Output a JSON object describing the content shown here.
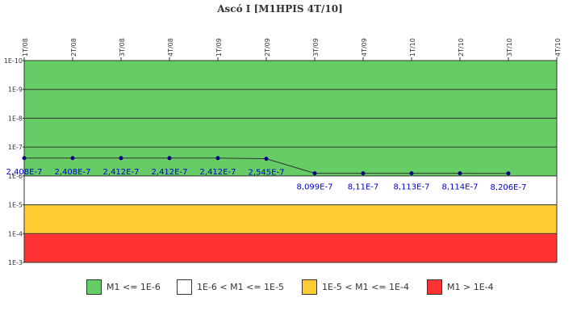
{
  "chart_data": {
    "type": "line",
    "title": "Ascó I [M1HPIS 4T/10]",
    "y_scale": "log",
    "y_axis_inverted": true,
    "y_ticks": [
      "1E-10",
      "1E-9",
      "1E-8",
      "1E-7",
      "1E-6",
      "1E-5",
      "1E-4",
      "1E-3"
    ],
    "y_tick_values": [
      1e-10,
      1e-09,
      1e-08,
      1e-07,
      1e-06,
      1e-05,
      0.0001,
      0.001
    ],
    "x_ticks": [
      "1T/08",
      "2T/08",
      "3T/08",
      "4T/08",
      "1T/09",
      "2T/09",
      "3T/09",
      "4T/09",
      "1T/10",
      "2T/10",
      "3T/10",
      "4T/10"
    ],
    "series": [
      {
        "x": [
          "1T/08",
          "2T/08",
          "3T/08",
          "4T/08",
          "1T/09",
          "2T/09",
          "3T/09",
          "4T/09",
          "1T/10",
          "2T/10",
          "3T/10"
        ],
        "values": [
          2.408e-07,
          2.408e-07,
          2.412e-07,
          2.412e-07,
          2.412e-07,
          2.545e-07,
          8.099e-07,
          8.11e-07,
          8.113e-07,
          8.114e-07,
          8.206e-07
        ],
        "labels": [
          "2,408E-7",
          "2,408E-7",
          "2,412E-7",
          "2,412E-7",
          "2,412E-7",
          "2,545E-7",
          "8,099E-7",
          "8,11E-7",
          "8,113E-7",
          "8,114E-7",
          "8,206E-7"
        ],
        "line_color": "#333333",
        "marker_color": "#000080"
      }
    ],
    "bands": [
      {
        "from": 1e-10,
        "to": 1e-06,
        "color": "#66cc66",
        "label": "M1 <= 1E-6"
      },
      {
        "from": 1e-06,
        "to": 1e-05,
        "color": "#ffffff",
        "label": "1E-6 < M1 <= 1E-5"
      },
      {
        "from": 1e-05,
        "to": 0.0001,
        "color": "#ffcc33",
        "label": "1E-5 < M1 <= 1E-4"
      },
      {
        "from": 0.0001,
        "to": 0.001,
        "color": "#ff3333",
        "label": "M1 > 1E-4"
      }
    ],
    "legend_position": "bottom"
  }
}
